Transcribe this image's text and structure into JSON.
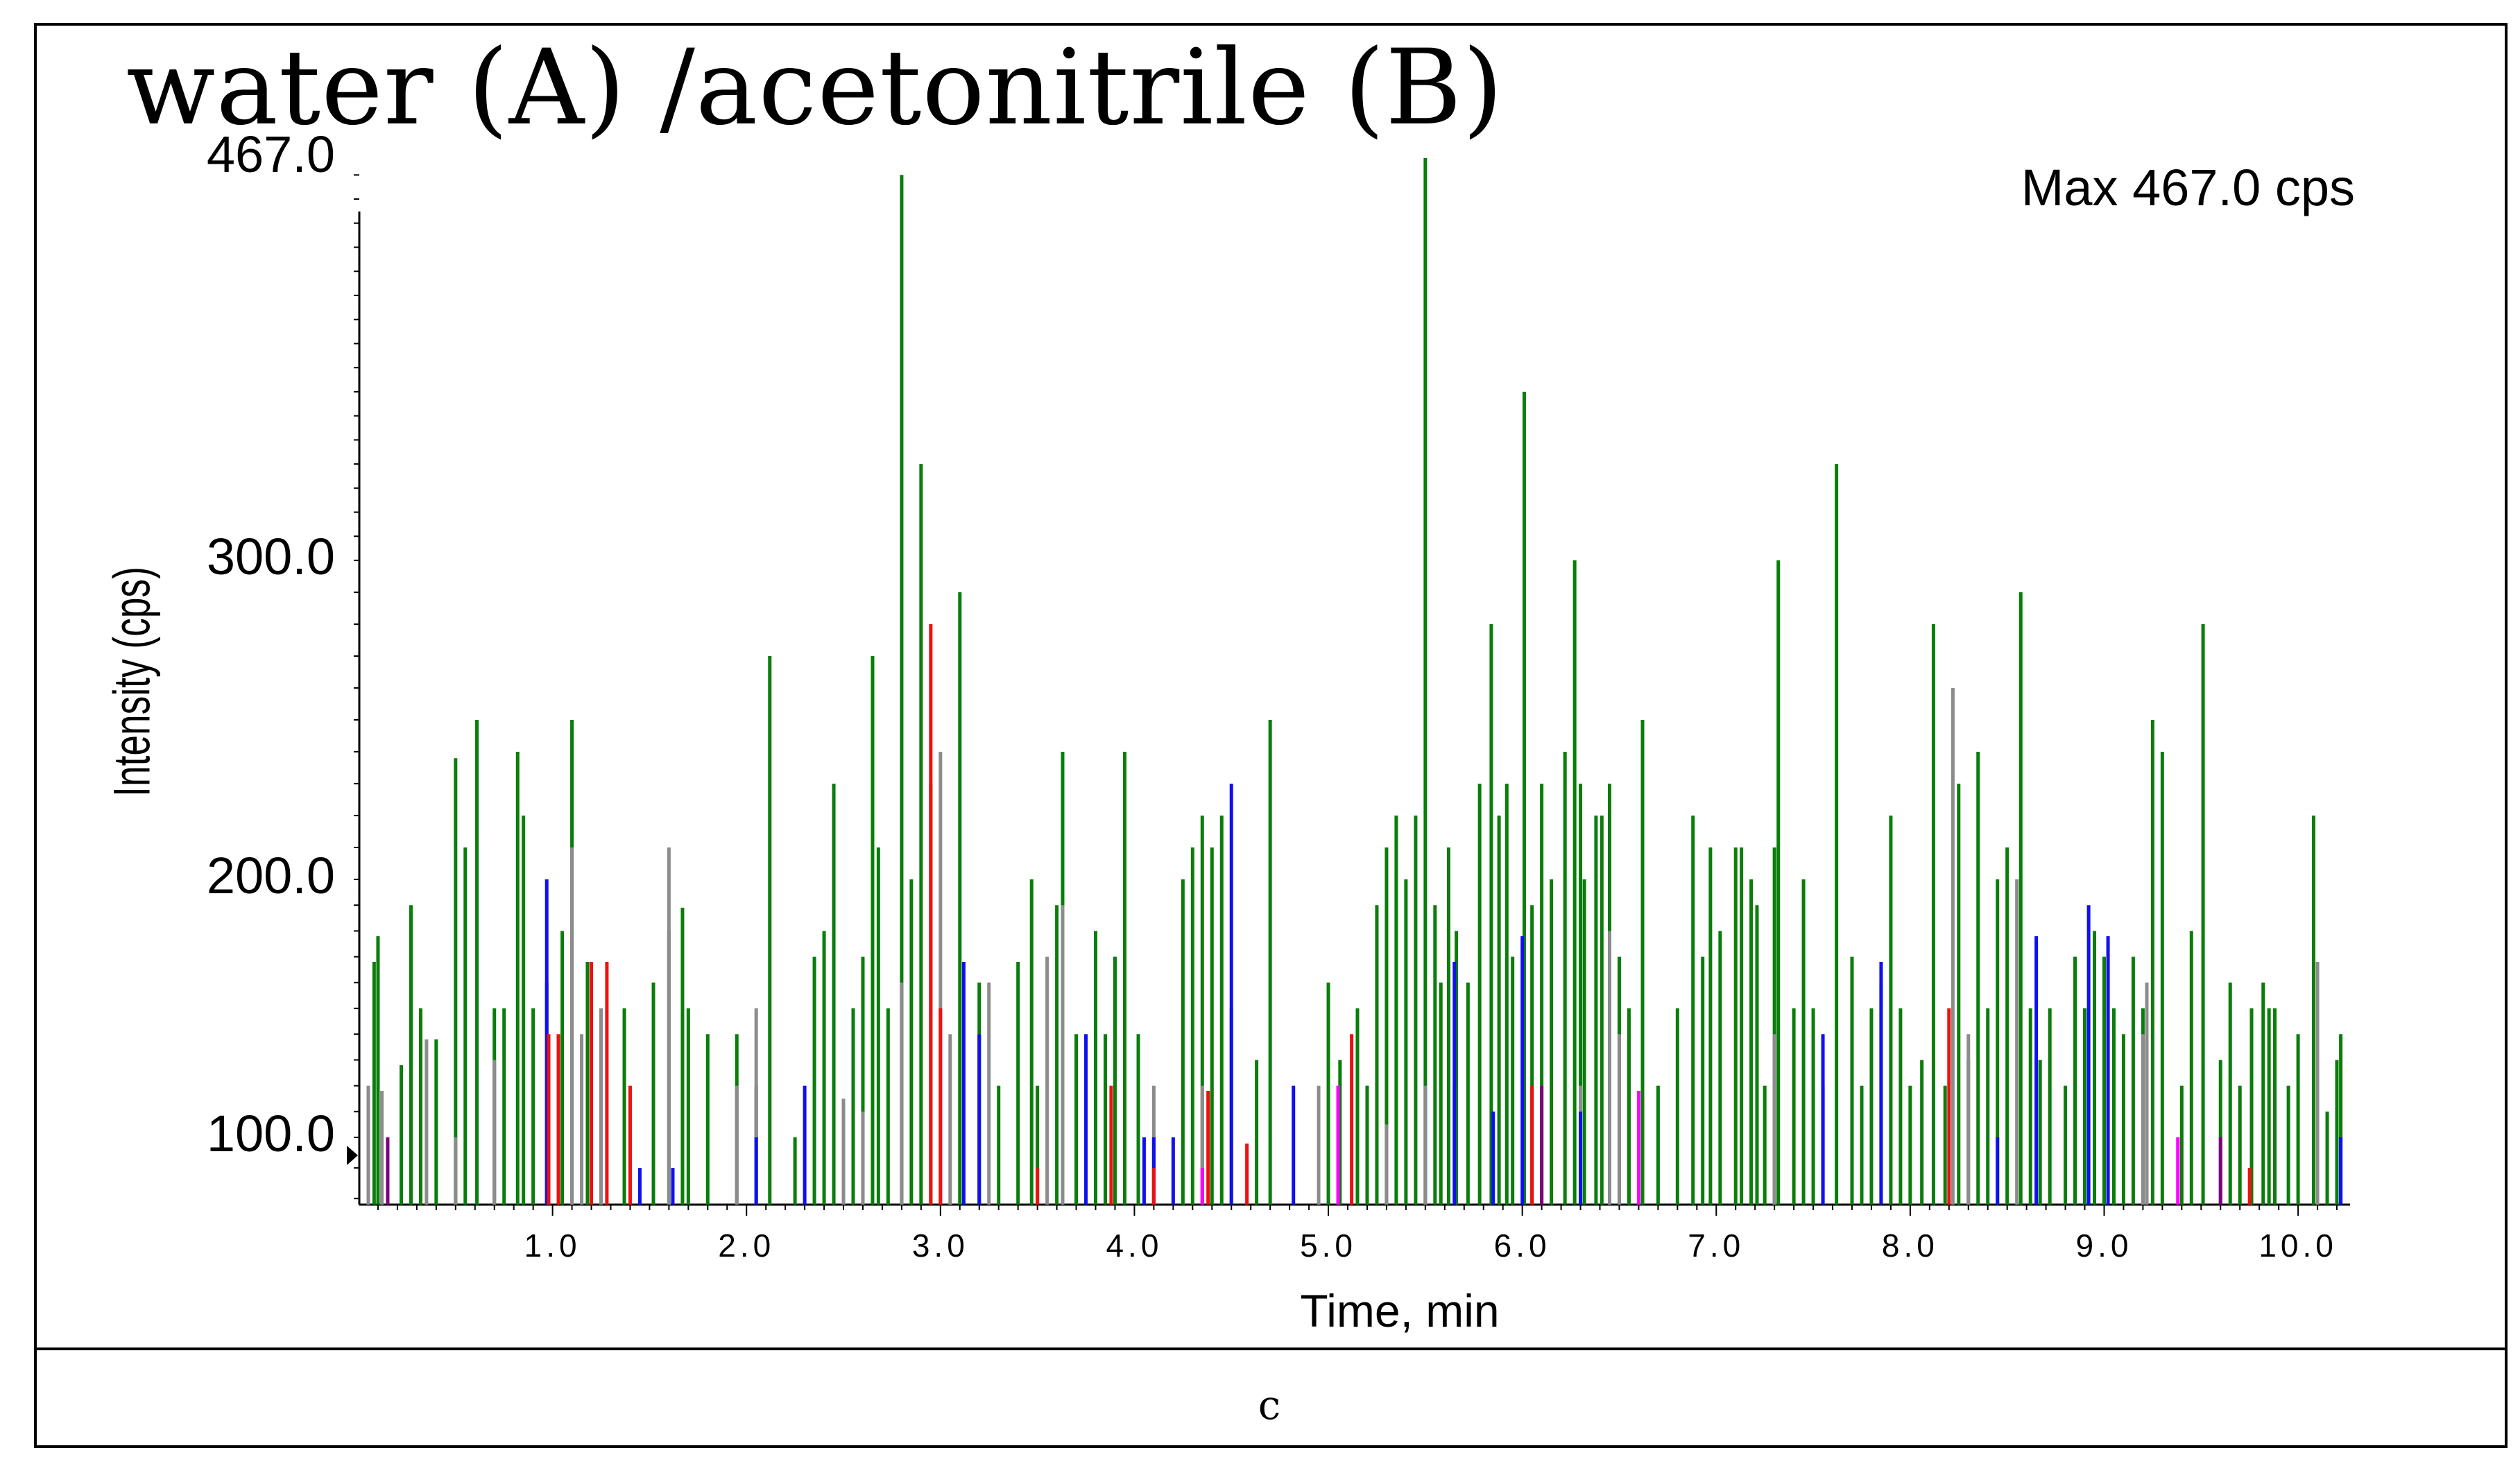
{
  "title": "water (A) /acetonitrile (B)",
  "max_label": "Max 467.0 cps",
  "caption": "c",
  "colors": {
    "green": "#0a7d0a",
    "gray": "#8c8c8c",
    "blue": "#1010ee",
    "red": "#ee1010",
    "magenta": "#ff00ff",
    "purple": "#7f007f"
  },
  "chart_data": {
    "type": "line",
    "title": "water (A) /acetonitrile (B)",
    "xlabel": "Time, min",
    "ylabel": "Intensity (cps)",
    "max_label": "Max 467.0 cps",
    "xlim": [
      0,
      10.25
    ],
    "ylim": [
      78,
      467
    ],
    "ytick_labels": [
      "467.0",
      "300.0",
      "200.0",
      "100.0"
    ],
    "ytick_values": [
      467,
      300,
      200,
      100
    ],
    "xtick_labels": [
      "1.0",
      "2.0",
      "3.0",
      "4.0",
      "5.0",
      "6.0",
      "7.0",
      "8.0",
      "9.0",
      "10.0"
    ],
    "xtick_values": [
      1,
      2,
      3,
      4,
      5,
      6,
      7,
      8,
      9,
      10
    ],
    "baseline": 78,
    "series": [
      {
        "name": "green",
        "color": "#0a7d0a",
        "spikes": [
          [
            0.08,
            168
          ],
          [
            0.1,
            178
          ],
          [
            0.22,
            128
          ],
          [
            0.27,
            190
          ],
          [
            0.32,
            150
          ],
          [
            0.4,
            138
          ],
          [
            0.5,
            238
          ],
          [
            0.55,
            210
          ],
          [
            0.61,
            250
          ],
          [
            0.7,
            150
          ],
          [
            0.75,
            150
          ],
          [
            0.82,
            240
          ],
          [
            0.85,
            220
          ],
          [
            0.9,
            150
          ],
          [
            0.97,
            160
          ],
          [
            1.05,
            180
          ],
          [
            1.1,
            250
          ],
          [
            1.18,
            168
          ],
          [
            1.25,
            150
          ],
          [
            1.37,
            150
          ],
          [
            1.52,
            160
          ],
          [
            1.6,
            180
          ],
          [
            1.67,
            189
          ],
          [
            1.7,
            150
          ],
          [
            1.8,
            140
          ],
          [
            1.95,
            140
          ],
          [
            2.05,
            120
          ],
          [
            2.12,
            270
          ],
          [
            2.25,
            100
          ],
          [
            2.35,
            170
          ],
          [
            2.4,
            180
          ],
          [
            2.45,
            230
          ],
          [
            2.55,
            150
          ],
          [
            2.6,
            170
          ],
          [
            2.65,
            270
          ],
          [
            2.68,
            210
          ],
          [
            2.73,
            150
          ],
          [
            2.8,
            460
          ],
          [
            2.85,
            200
          ],
          [
            2.9,
            340
          ],
          [
            2.95,
            230
          ],
          [
            3.1,
            290
          ],
          [
            3.2,
            160
          ],
          [
            3.3,
            120
          ],
          [
            3.4,
            168
          ],
          [
            3.47,
            200
          ],
          [
            3.5,
            120
          ],
          [
            3.6,
            190
          ],
          [
            3.63,
            240
          ],
          [
            3.7,
            140
          ],
          [
            3.8,
            180
          ],
          [
            3.85,
            140
          ],
          [
            3.9,
            170
          ],
          [
            3.95,
            240
          ],
          [
            4.02,
            140
          ],
          [
            4.1,
            100
          ],
          [
            4.25,
            200
          ],
          [
            4.3,
            210
          ],
          [
            4.35,
            220
          ],
          [
            4.4,
            210
          ],
          [
            4.45,
            220
          ],
          [
            4.5,
            150
          ],
          [
            4.63,
            130
          ],
          [
            4.7,
            250
          ],
          [
            5.0,
            160
          ],
          [
            5.06,
            130
          ],
          [
            5.15,
            150
          ],
          [
            5.2,
            120
          ],
          [
            5.25,
            190
          ],
          [
            5.3,
            210
          ],
          [
            5.35,
            220
          ],
          [
            5.4,
            200
          ],
          [
            5.45,
            220
          ],
          [
            5.5,
            467
          ],
          [
            5.55,
            190
          ],
          [
            5.58,
            160
          ],
          [
            5.62,
            210
          ],
          [
            5.66,
            180
          ],
          [
            5.72,
            160
          ],
          [
            5.78,
            230
          ],
          [
            5.84,
            280
          ],
          [
            5.88,
            220
          ],
          [
            5.92,
            230
          ],
          [
            5.95,
            170
          ],
          [
            6.01,
            370
          ],
          [
            6.05,
            190
          ],
          [
            6.1,
            230
          ],
          [
            6.15,
            200
          ],
          [
            6.22,
            240
          ],
          [
            6.27,
            300
          ],
          [
            6.3,
            230
          ],
          [
            6.32,
            200
          ],
          [
            6.38,
            220
          ],
          [
            6.41,
            220
          ],
          [
            6.45,
            230
          ],
          [
            6.5,
            170
          ],
          [
            6.55,
            150
          ],
          [
            6.62,
            250
          ],
          [
            6.7,
            120
          ],
          [
            6.8,
            150
          ],
          [
            6.88,
            220
          ],
          [
            6.93,
            170
          ],
          [
            6.97,
            210
          ],
          [
            7.02,
            180
          ],
          [
            7.1,
            210
          ],
          [
            7.13,
            210
          ],
          [
            7.18,
            200
          ],
          [
            7.21,
            190
          ],
          [
            7.25,
            120
          ],
          [
            7.3,
            210
          ],
          [
            7.32,
            300
          ],
          [
            7.4,
            150
          ],
          [
            7.45,
            200
          ],
          [
            7.5,
            150
          ],
          [
            7.55,
            120
          ],
          [
            7.62,
            340
          ],
          [
            7.7,
            170
          ],
          [
            7.75,
            120
          ],
          [
            7.8,
            150
          ],
          [
            7.85,
            160
          ],
          [
            7.9,
            220
          ],
          [
            7.95,
            150
          ],
          [
            8.0,
            120
          ],
          [
            8.06,
            130
          ],
          [
            8.12,
            280
          ],
          [
            8.18,
            120
          ],
          [
            8.25,
            230
          ],
          [
            8.3,
            130
          ],
          [
            8.35,
            240
          ],
          [
            8.4,
            150
          ],
          [
            8.45,
            200
          ],
          [
            8.5,
            210
          ],
          [
            8.57,
            290
          ],
          [
            8.62,
            150
          ],
          [
            8.67,
            130
          ],
          [
            8.72,
            150
          ],
          [
            8.8,
            120
          ],
          [
            8.85,
            170
          ],
          [
            8.9,
            150
          ],
          [
            8.95,
            180
          ],
          [
            9.0,
            170
          ],
          [
            9.05,
            150
          ],
          [
            9.1,
            140
          ],
          [
            9.15,
            170
          ],
          [
            9.2,
            150
          ],
          [
            9.25,
            250
          ],
          [
            9.3,
            240
          ],
          [
            9.4,
            120
          ],
          [
            9.45,
            180
          ],
          [
            9.51,
            280
          ],
          [
            9.6,
            130
          ],
          [
            9.65,
            160
          ],
          [
            9.7,
            120
          ],
          [
            9.76,
            150
          ],
          [
            9.82,
            160
          ],
          [
            9.85,
            150
          ],
          [
            9.88,
            150
          ],
          [
            9.95,
            120
          ],
          [
            10.0,
            140
          ],
          [
            10.08,
            220
          ],
          [
            10.15,
            110
          ],
          [
            10.2,
            130
          ],
          [
            10.22,
            140
          ]
        ]
      },
      {
        "name": "gray",
        "color": "#8c8c8c",
        "spikes": [
          [
            0.05,
            120
          ],
          [
            0.12,
            118
          ],
          [
            0.35,
            138
          ],
          [
            0.5,
            100
          ],
          [
            0.7,
            130
          ],
          [
            1.1,
            210
          ],
          [
            1.15,
            140
          ],
          [
            1.25,
            150
          ],
          [
            1.6,
            210
          ],
          [
            1.95,
            120
          ],
          [
            2.05,
            150
          ],
          [
            2.5,
            115
          ],
          [
            2.6,
            110
          ],
          [
            2.8,
            160
          ],
          [
            3.0,
            240
          ],
          [
            3.05,
            140
          ],
          [
            3.2,
            140
          ],
          [
            3.25,
            160
          ],
          [
            3.55,
            170
          ],
          [
            3.63,
            190
          ],
          [
            4.1,
            120
          ],
          [
            4.35,
            120
          ],
          [
            4.95,
            120
          ],
          [
            5.05,
            120
          ],
          [
            5.3,
            105
          ],
          [
            5.5,
            120
          ],
          [
            5.65,
            120
          ],
          [
            6.3,
            120
          ],
          [
            6.45,
            180
          ],
          [
            6.5,
            140
          ],
          [
            7.3,
            140
          ],
          [
            7.55,
            120
          ],
          [
            8.22,
            260
          ],
          [
            8.3,
            140
          ],
          [
            8.55,
            200
          ],
          [
            9.2,
            140
          ],
          [
            9.22,
            160
          ],
          [
            10.1,
            168
          ]
        ]
      },
      {
        "name": "blue",
        "color": "#1010ee",
        "spikes": [
          [
            0.97,
            200
          ],
          [
            1.45,
            90
          ],
          [
            1.62,
            90
          ],
          [
            2.05,
            100
          ],
          [
            2.3,
            120
          ],
          [
            3.12,
            168
          ],
          [
            3.2,
            140
          ],
          [
            3.75,
            140
          ],
          [
            4.05,
            100
          ],
          [
            4.1,
            100
          ],
          [
            4.2,
            100
          ],
          [
            4.5,
            230
          ],
          [
            4.82,
            120
          ],
          [
            5.65,
            168
          ],
          [
            5.85,
            110
          ],
          [
            6.0,
            178
          ],
          [
            6.3,
            110
          ],
          [
            7.55,
            140
          ],
          [
            7.85,
            168
          ],
          [
            8.45,
            100
          ],
          [
            8.65,
            178
          ],
          [
            8.92,
            190
          ],
          [
            9.02,
            178
          ],
          [
            10.22,
            100
          ]
        ]
      },
      {
        "name": "red",
        "color": "#ee1010",
        "spikes": [
          [
            0.98,
            140
          ],
          [
            1.03,
            140
          ],
          [
            1.2,
            168
          ],
          [
            1.28,
            168
          ],
          [
            1.4,
            120
          ],
          [
            2.95,
            280
          ],
          [
            3.0,
            150
          ],
          [
            3.5,
            90
          ],
          [
            3.88,
            120
          ],
          [
            4.1,
            90
          ],
          [
            4.38,
            118
          ],
          [
            4.58,
            98
          ],
          [
            5.12,
            140
          ],
          [
            6.05,
            120
          ],
          [
            8.2,
            150
          ],
          [
            9.75,
            90
          ]
        ]
      },
      {
        "name": "magenta",
        "color": "#ff00ff",
        "spikes": [
          [
            4.35,
            90
          ],
          [
            5.05,
            120
          ],
          [
            6.6,
            118
          ],
          [
            9.38,
            100
          ]
        ]
      },
      {
        "name": "purple",
        "color": "#7f007f",
        "spikes": [
          [
            0.15,
            100
          ],
          [
            6.1,
            120
          ],
          [
            9.6,
            100
          ]
        ]
      }
    ]
  }
}
